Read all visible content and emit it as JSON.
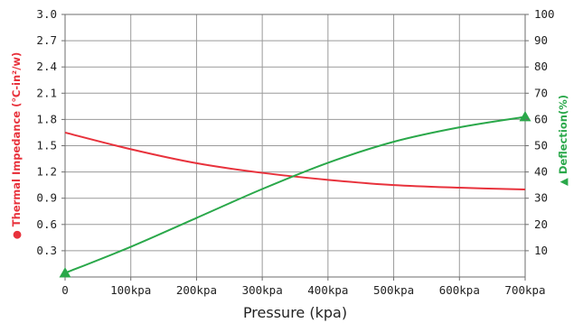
{
  "chart_data": {
    "type": "line",
    "x_unit_label": "kpa",
    "xlabel": "Pressure (kpa)",
    "x_ticks": [
      0,
      100,
      200,
      300,
      400,
      500,
      600,
      700
    ],
    "x_tick_labels": [
      "0",
      "100kpa",
      "200kpa",
      "300kpa",
      "400kpa",
      "500kpa",
      "600kpa",
      "700kpa"
    ],
    "xlim": [
      0,
      700
    ],
    "y_left": {
      "label": "Thermal Impedance (℃-in²/w)",
      "marker": "●",
      "ylim": [
        0,
        3.0
      ],
      "ticks": [
        0.3,
        0.6,
        0.9,
        1.2,
        1.5,
        1.8,
        2.1,
        2.4,
        2.7,
        3.0
      ],
      "tick_labels": [
        "0.3",
        "0.6",
        "0.9",
        "1.2",
        "1.5",
        "1.8",
        "2.1",
        "2.4",
        "2.7",
        "3.0"
      ],
      "color": "#e8323c"
    },
    "y_right": {
      "label": "Deflection(%)",
      "marker": "▲",
      "ylim": [
        0,
        100
      ],
      "ticks": [
        10,
        20,
        30,
        40,
        50,
        60,
        70,
        80,
        90,
        100
      ],
      "tick_labels": [
        "10",
        "20",
        "30",
        "40",
        "50",
        "60",
        "70",
        "80",
        "90",
        "100"
      ],
      "color": "#2aa84a"
    },
    "grid": true,
    "series": [
      {
        "axis": "left",
        "color": "#e8323c",
        "x": [
          0,
          100,
          200,
          300,
          400,
          500,
          600,
          700
        ],
        "y": [
          1.65,
          1.46,
          1.3,
          1.19,
          1.11,
          1.05,
          1.02,
          1.0
        ]
      },
      {
        "axis": "right",
        "color": "#2aa84a",
        "x": [
          0,
          100,
          200,
          300,
          400,
          500,
          600,
          700
        ],
        "y": [
          1.5,
          11.5,
          22.5,
          33.5,
          43.5,
          51.5,
          57.0,
          61.0
        ],
        "end_markers": "triangle"
      }
    ]
  }
}
